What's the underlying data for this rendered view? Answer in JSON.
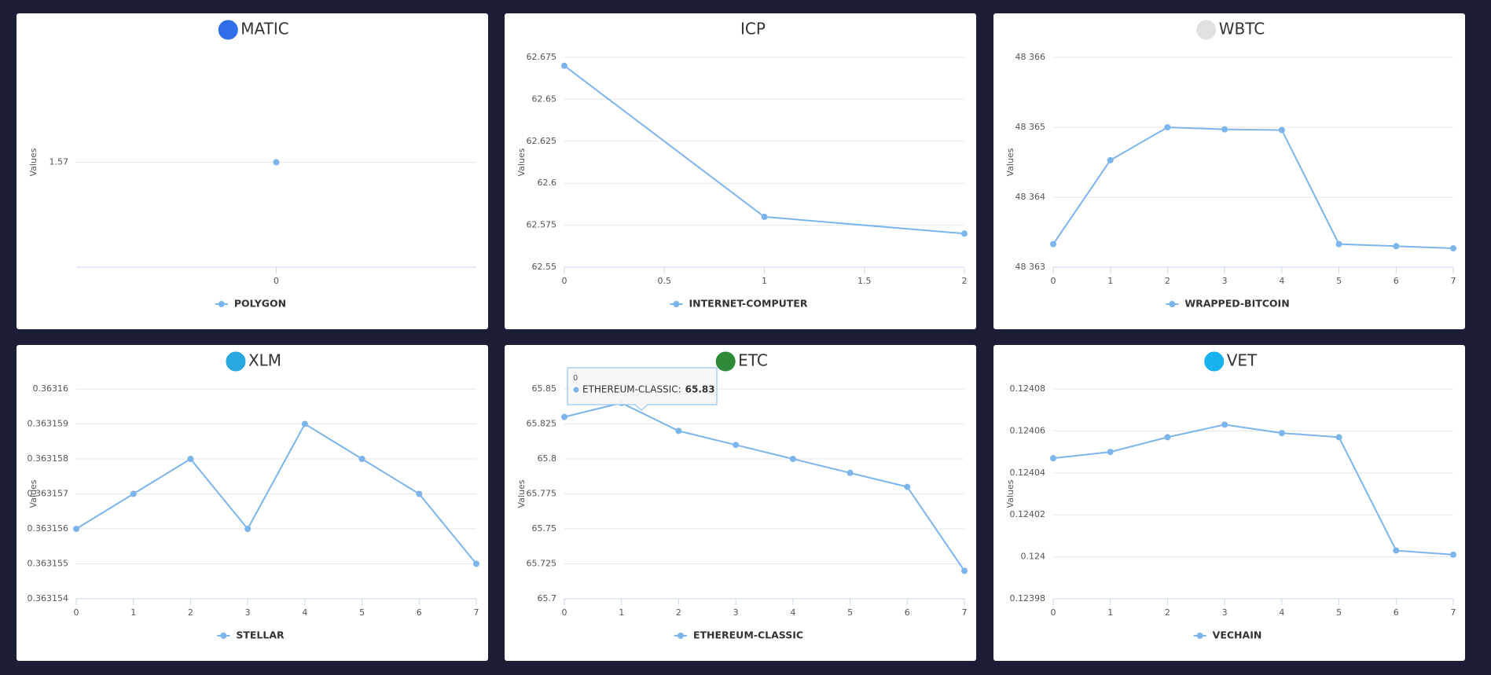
{
  "chart_data": [
    {
      "type": "line",
      "title": "MATIC",
      "y_label": "Values",
      "x": [
        0
      ],
      "series": [
        {
          "name": "POLYGON",
          "color": "#7cb5ec",
          "values": [
            1.57
          ]
        }
      ],
      "xlim": [
        -0.5,
        0.5
      ],
      "xticks": [
        0
      ],
      "ylim": [
        1.56,
        1.58
      ],
      "yticks": [
        1.57
      ],
      "grid": true
    },
    {
      "type": "line",
      "title": "ICP",
      "y_label": "Values",
      "x": [
        0,
        1,
        2
      ],
      "series": [
        {
          "name": "INTERNET-COMPUTER",
          "color": "#7cb5ec",
          "values": [
            62.67,
            62.58,
            62.57
          ]
        }
      ],
      "xlim": [
        0,
        2
      ],
      "xticks": [
        0,
        0.5,
        1,
        1.5,
        2
      ],
      "ylim": [
        62.55,
        62.675
      ],
      "yticks": [
        62.55,
        62.575,
        62.6,
        62.625,
        62.65,
        62.675
      ],
      "grid": true
    },
    {
      "type": "line",
      "title": "WBTC",
      "y_label": "Values",
      "x": [
        0,
        1,
        2,
        3,
        4,
        5,
        6,
        7
      ],
      "series": [
        {
          "name": "WRAPPED-BITCOIN",
          "color": "#7cb5ec",
          "values": [
            48363.33,
            48364.53,
            48365,
            48364.97,
            48364.96,
            48363.33,
            48363.3,
            48363.27
          ]
        }
      ],
      "xlim": [
        0,
        7
      ],
      "xticks": [
        0,
        1,
        2,
        3,
        4,
        5,
        6,
        7
      ],
      "ylim": [
        48363,
        48366
      ],
      "yticks": [
        {
          "value": 48363,
          "label": "48 363"
        },
        {
          "value": 48364,
          "label": "48 364"
        },
        {
          "value": 48365,
          "label": "48 365"
        },
        {
          "value": 48366,
          "label": "48 366"
        }
      ],
      "grid": true
    },
    {
      "type": "line",
      "title": "XLM",
      "y_label": "Values",
      "x": [
        0,
        1,
        2,
        3,
        4,
        5,
        6,
        7
      ],
      "series": [
        {
          "name": "STELLAR",
          "color": "#7cb5ec",
          "values": [
            0.363156,
            0.363157,
            0.363158,
            0.363156,
            0.363159,
            0.363158,
            0.363157,
            0.363155
          ]
        }
      ],
      "xlim": [
        0,
        7
      ],
      "xticks": [
        0,
        1,
        2,
        3,
        4,
        5,
        6,
        7
      ],
      "ylim": [
        0.363154,
        0.36316
      ],
      "yticks": [
        0.363154,
        0.363155,
        0.363156,
        0.363157,
        0.363158,
        0.363159,
        0.36316
      ],
      "grid": true
    },
    {
      "type": "line",
      "title": "ETC",
      "y_label": "Values",
      "x": [
        0,
        1,
        2,
        3,
        4,
        5,
        6,
        7
      ],
      "series": [
        {
          "name": "ETHEREUM-CLASSIC",
          "color": "#7cb5ec",
          "values": [
            65.83,
            65.84,
            65.82,
            65.81,
            65.8,
            65.79,
            65.78,
            65.72
          ]
        }
      ],
      "xlim": [
        0,
        7
      ],
      "xticks": [
        0,
        1,
        2,
        3,
        4,
        5,
        6,
        7
      ],
      "ylim": [
        65.7,
        65.85
      ],
      "yticks": [
        65.7,
        65.725,
        65.75,
        65.775,
        65.8,
        65.825,
        65.85
      ],
      "grid": true,
      "tooltip": {
        "title": "0",
        "series": "ETHEREUM-CLASSIC:",
        "value": 65.83
      }
    },
    {
      "type": "line",
      "title": "VET",
      "y_label": "Values",
      "x": [
        0,
        1,
        2,
        3,
        4,
        5,
        6,
        7
      ],
      "series": [
        {
          "name": "VECHAIN",
          "color": "#7cb5ec",
          "values": [
            0.124047,
            0.12405,
            0.124057,
            0.124063,
            0.124059,
            0.124057,
            0.124003,
            0.124001
          ]
        }
      ],
      "xlim": [
        0,
        7
      ],
      "xticks": [
        0,
        1,
        2,
        3,
        4,
        5,
        6,
        7
      ],
      "ylim": [
        0.12398,
        0.12408
      ],
      "yticks": [
        0.12398,
        0.124,
        0.12402,
        0.12404,
        0.12406,
        0.12408
      ],
      "grid": true
    }
  ]
}
